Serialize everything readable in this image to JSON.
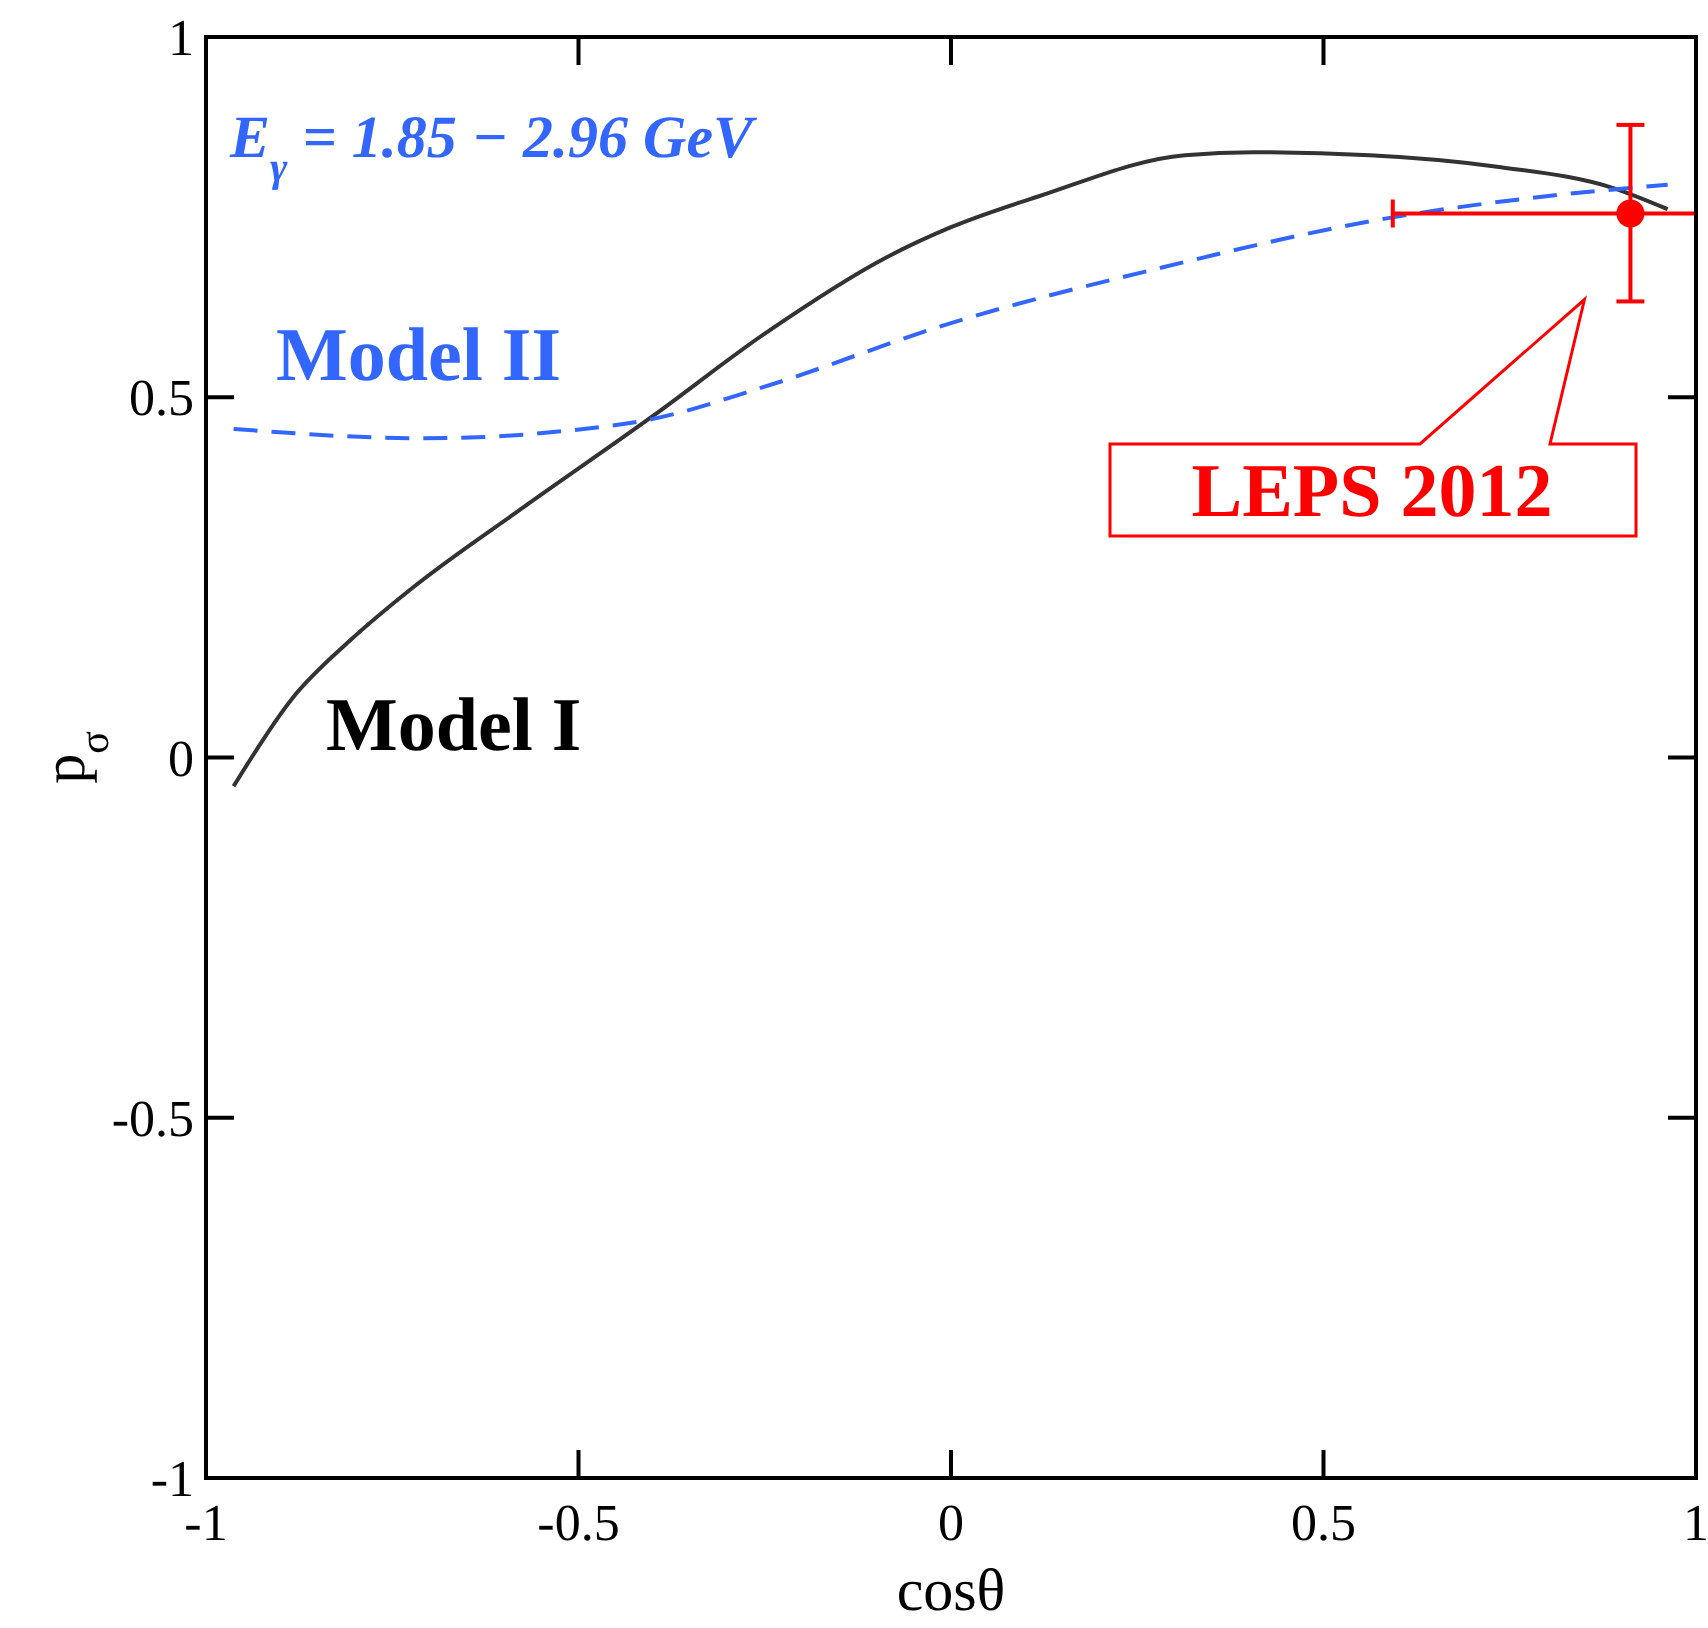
{
  "chart_data": {
    "type": "line",
    "xlabel": "cosθ",
    "ylabel": "p$_{σ}$",
    "annotations": [
      "E$_{γ}$ = 1.85 − 2.96 GeV"
    ],
    "xlim": [
      -1,
      1
    ],
    "ylim": [
      -1,
      1
    ],
    "xticks": [
      -1,
      -0.5,
      0,
      0.5,
      1
    ],
    "yticks": [
      -1,
      -0.5,
      0,
      0.5,
      1
    ],
    "series": [
      {
        "name": "Model I",
        "color": "#333333",
        "line_style": "solid",
        "x": [
          -0.963,
          -0.885,
          -0.806,
          -0.721,
          -0.577,
          -0.4,
          -0.249,
          -0.085,
          0.0,
          0.118,
          0.314,
          0.406,
          0.562,
          0.733,
          0.89,
          0.962
        ],
        "values": [
          -0.04,
          0.081,
          0.163,
          0.237,
          0.345,
          0.474,
          0.589,
          0.695,
          0.736,
          0.779,
          0.836,
          0.84,
          0.836,
          0.82,
          0.79,
          0.761
        ]
      },
      {
        "name": "Model II",
        "color": "#3366ff",
        "line_style": "dashed",
        "x": [
          -0.963,
          -0.708,
          -0.511,
          -0.4,
          -0.249,
          0.0,
          0.275,
          0.589,
          0.799,
          0.962
        ],
        "values": [
          0.456,
          0.443,
          0.454,
          0.47,
          0.515,
          0.603,
          0.678,
          0.749,
          0.779,
          0.795
        ]
      },
      {
        "name": "LEPS 2012",
        "type": "scatter",
        "color": "#ff0000",
        "marker": "circle",
        "x": [
          0.912
        ],
        "values": [
          0.755
        ],
        "errors": [
          [
            0.633,
            0.878
          ]
        ],
        "xerrors": [
          [
            0.593,
            1.0
          ]
        ]
      }
    ]
  }
}
